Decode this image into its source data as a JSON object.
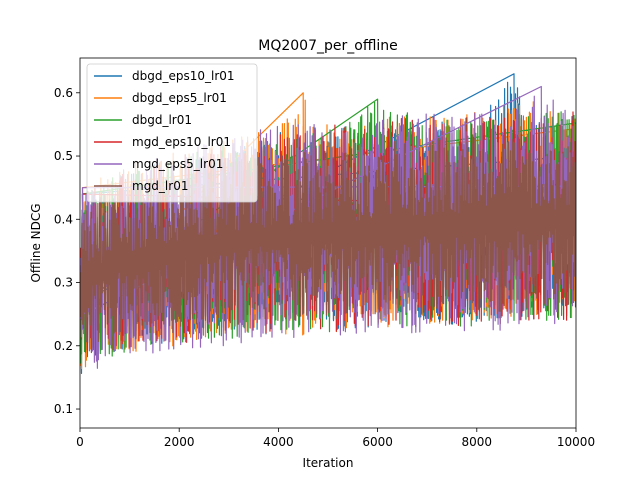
{
  "chart_data": {
    "type": "line",
    "title": "MQ2007_per_offline",
    "xlabel": "Iteration",
    "ylabel": "Offline NDCG",
    "xlim": [
      0,
      10000
    ],
    "ylim": [
      0.07,
      0.655
    ],
    "x_ticks": [
      0,
      2000,
      4000,
      6000,
      8000,
      10000
    ],
    "y_ticks": [
      0.1,
      0.2,
      0.3,
      0.4,
      0.5,
      0.6
    ],
    "x_tick_labels": [
      "0",
      "2000",
      "4000",
      "6000",
      "8000",
      "10000"
    ],
    "y_tick_labels": [
      "0.1",
      "0.2",
      "0.3",
      "0.4",
      "0.5",
      "0.6"
    ],
    "grid": false,
    "legend_position": "top-left",
    "series": [
      {
        "name": "dbgd_eps10_lr01",
        "color": "#1f77b4",
        "x": [
          0,
          50,
          500,
          1000,
          2000,
          3000,
          4000,
          5000,
          6000,
          7000,
          8000,
          8750,
          9000,
          10000
        ],
        "low": [
          0.1,
          0.17,
          0.18,
          0.19,
          0.2,
          0.21,
          0.22,
          0.22,
          0.23,
          0.23,
          0.23,
          0.24,
          0.24,
          0.24
        ],
        "high": [
          0.22,
          0.44,
          0.46,
          0.48,
          0.5,
          0.52,
          0.54,
          0.55,
          0.55,
          0.56,
          0.56,
          0.63,
          0.56,
          0.57
        ]
      },
      {
        "name": "dbgd_eps5_lr01",
        "color": "#ff7f0e",
        "x": [
          0,
          50,
          500,
          1000,
          2000,
          3000,
          4000,
          4500,
          5000,
          6000,
          7000,
          8000,
          9000,
          10000
        ],
        "low": [
          0.12,
          0.16,
          0.18,
          0.19,
          0.2,
          0.21,
          0.22,
          0.21,
          0.22,
          0.23,
          0.23,
          0.23,
          0.24,
          0.24
        ],
        "high": [
          0.24,
          0.45,
          0.47,
          0.49,
          0.51,
          0.53,
          0.55,
          0.6,
          0.55,
          0.56,
          0.57,
          0.57,
          0.59,
          0.59
        ]
      },
      {
        "name": "dbgd_lr01",
        "color": "#2ca02c",
        "x": [
          0,
          50,
          500,
          1000,
          2000,
          3000,
          4000,
          5000,
          6000,
          7000,
          8000,
          9000,
          10000
        ],
        "low": [
          0.15,
          0.17,
          0.18,
          0.19,
          0.2,
          0.21,
          0.22,
          0.22,
          0.23,
          0.23,
          0.23,
          0.24,
          0.24
        ],
        "high": [
          0.3,
          0.44,
          0.46,
          0.48,
          0.5,
          0.52,
          0.53,
          0.54,
          0.59,
          0.56,
          0.56,
          0.57,
          0.57
        ]
      },
      {
        "name": "mgd_eps10_lr01",
        "color": "#d62728",
        "x": [
          0,
          50,
          500,
          1000,
          2000,
          3000,
          4000,
          5000,
          6000,
          7000,
          8000,
          9000,
          10000
        ],
        "low": [
          0.2,
          0.17,
          0.18,
          0.19,
          0.2,
          0.21,
          0.22,
          0.22,
          0.23,
          0.23,
          0.23,
          0.24,
          0.22
        ],
        "high": [
          0.32,
          0.44,
          0.46,
          0.48,
          0.5,
          0.52,
          0.54,
          0.55,
          0.56,
          0.56,
          0.57,
          0.57,
          0.57
        ]
      },
      {
        "name": "mgd_eps5_lr01",
        "color": "#9467bd",
        "x": [
          0,
          50,
          500,
          1000,
          2000,
          3000,
          4000,
          5000,
          6000,
          7000,
          8000,
          9000,
          9300,
          10000
        ],
        "low": [
          0.22,
          0.15,
          0.17,
          0.18,
          0.19,
          0.2,
          0.21,
          0.21,
          0.22,
          0.22,
          0.22,
          0.23,
          0.23,
          0.23
        ],
        "high": [
          0.34,
          0.45,
          0.47,
          0.49,
          0.51,
          0.53,
          0.55,
          0.55,
          0.56,
          0.57,
          0.57,
          0.58,
          0.61,
          0.57
        ]
      },
      {
        "name": "mgd_lr01",
        "color": "#8c564b",
        "x": [
          0,
          50,
          500,
          1000,
          2000,
          3000,
          4000,
          5000,
          6000,
          7000,
          8000,
          9000,
          10000
        ],
        "low": [
          0.25,
          0.18,
          0.2,
          0.21,
          0.22,
          0.23,
          0.24,
          0.24,
          0.25,
          0.25,
          0.25,
          0.26,
          0.26
        ],
        "high": [
          0.35,
          0.42,
          0.44,
          0.46,
          0.48,
          0.5,
          0.51,
          0.52,
          0.52,
          0.53,
          0.53,
          0.54,
          0.54
        ]
      }
    ]
  }
}
